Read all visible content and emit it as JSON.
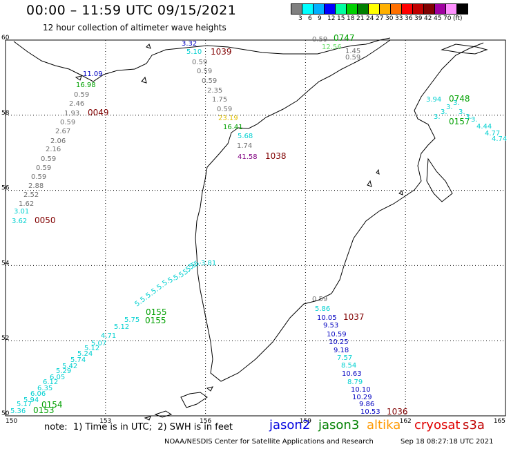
{
  "header": {
    "title": "00:00 – 11:59 UTC 09/15/2021",
    "subtitle": "12 hour collection of altimeter wave heights"
  },
  "color_scale": {
    "unit_label": "(ft)",
    "labels": [
      "3",
      "6",
      "9",
      "12",
      "15",
      "18",
      "21",
      "24",
      "27",
      "30",
      "33",
      "36",
      "39",
      "42",
      "45",
      "70"
    ],
    "colors": [
      "#808080",
      "#00ffff",
      "#00b0ff",
      "#0000ff",
      "#00ffa0",
      "#00d000",
      "#008000",
      "#ffff00",
      "#ffb000",
      "#ff7000",
      "#ff0000",
      "#c00000",
      "#800000",
      "#a000a0",
      "#ff90ff",
      "#000000"
    ]
  },
  "axes": {
    "lon_ticks": [
      "150",
      "153",
      "156",
      "159",
      "162",
      "165"
    ],
    "lat_ticks": [
      "60",
      "58",
      "56",
      "54",
      "52",
      "50"
    ]
  },
  "track_colors": {
    "grey": "#707070",
    "cyan": "#00d0d0",
    "blue": "#0000c0",
    "green": "#00a000",
    "lightgreen": "#66dd66",
    "yellow": "#e0c000",
    "purple": "#800080",
    "darkred": "#800000"
  },
  "observations": [
    {
      "v": "3.32",
      "c": "blue"
    },
    {
      "v": "5.10",
      "c": "cyan"
    },
    {
      "v": "1039",
      "c": "darkred",
      "t": 1
    },
    {
      "v": "0.59",
      "c": "grey"
    },
    {
      "v": "0.59",
      "c": "grey"
    },
    {
      "v": "0.59",
      "c": "grey"
    },
    {
      "v": "2.35",
      "c": "grey"
    },
    {
      "v": "1.75",
      "c": "grey"
    },
    {
      "v": "0.59",
      "c": "grey"
    },
    {
      "v": "23.19",
      "c": "yellow"
    },
    {
      "v": "16.41",
      "c": "green"
    },
    {
      "v": "5.68",
      "c": "cyan"
    },
    {
      "v": "1.74",
      "c": "grey"
    },
    {
      "v": "41.58",
      "c": "purple"
    },
    {
      "v": "1038",
      "c": "darkred",
      "t": 1
    },
    {
      "v": "11.09",
      "c": "blue"
    },
    {
      "v": "16.98",
      "c": "green"
    },
    {
      "v": "0.59",
      "c": "grey"
    },
    {
      "v": "2.46",
      "c": "grey"
    },
    {
      "v": "1.93",
      "c": "grey"
    },
    {
      "v": "0049",
      "c": "darkred",
      "t": 1
    },
    {
      "v": "0.59",
      "c": "grey"
    },
    {
      "v": "2.67",
      "c": "grey"
    },
    {
      "v": "2.06",
      "c": "grey"
    },
    {
      "v": "2.16",
      "c": "grey"
    },
    {
      "v": "0.59",
      "c": "grey"
    },
    {
      "v": "0.59",
      "c": "grey"
    },
    {
      "v": "0.59",
      "c": "grey"
    },
    {
      "v": "2.88",
      "c": "grey"
    },
    {
      "v": "2.52",
      "c": "grey"
    },
    {
      "v": "1.62",
      "c": "grey"
    },
    {
      "v": "3.01",
      "c": "cyan"
    },
    {
      "v": "3.62",
      "c": "cyan"
    },
    {
      "v": "0050",
      "c": "darkred",
      "t": 1
    },
    {
      "v": "0.59",
      "c": "grey"
    },
    {
      "v": "0747",
      "c": "green",
      "t": 1
    },
    {
      "v": "12.56",
      "c": "lightgreen"
    },
    {
      "v": "1.45",
      "c": "grey"
    },
    {
      "v": "0.59",
      "c": "grey"
    },
    {
      "v": "3.94",
      "c": "cyan"
    },
    {
      "v": "0748",
      "c": "green",
      "t": 1
    },
    {
      "v": "0157",
      "c": "green",
      "t": 1
    },
    {
      "v": "4.44",
      "c": "cyan"
    },
    {
      "v": "4.77",
      "c": "cyan"
    },
    {
      "v": "4.74",
      "c": "cyan"
    },
    {
      "v": "0.59",
      "c": "grey"
    },
    {
      "v": "5.86",
      "c": "cyan"
    },
    {
      "v": "10.05",
      "c": "blue"
    },
    {
      "v": "1037",
      "c": "darkred",
      "t": 1
    },
    {
      "v": "9.53",
      "c": "blue"
    },
    {
      "v": "10.59",
      "c": "blue"
    },
    {
      "v": "10.25",
      "c": "blue"
    },
    {
      "v": "9.18",
      "c": "blue"
    },
    {
      "v": "7.57",
      "c": "cyan"
    },
    {
      "v": "8.54",
      "c": "cyan"
    },
    {
      "v": "10.63",
      "c": "blue"
    },
    {
      "v": "8.79",
      "c": "cyan"
    },
    {
      "v": "10.10",
      "c": "blue"
    },
    {
      "v": "10.29",
      "c": "blue"
    },
    {
      "v": "9.86",
      "c": "blue"
    },
    {
      "v": "10.53",
      "c": "blue"
    },
    {
      "v": "1036",
      "c": "darkred",
      "t": 1
    },
    {
      "v": "0155",
      "c": "green",
      "t": 1
    },
    {
      "v": "0155",
      "c": "green",
      "t": 1
    },
    {
      "v": "0154",
      "c": "green",
      "t": 1
    },
    {
      "v": "0153",
      "c": "green",
      "t": 1
    },
    {
      "v": "5.36",
      "c": "cyan"
    },
    {
      "v": "5.17",
      "c": "cyan"
    },
    {
      "v": "5.94",
      "c": "cyan"
    },
    {
      "v": "6.06",
      "c": "cyan"
    },
    {
      "v": "6.35",
      "c": "cyan"
    },
    {
      "v": "6.12",
      "c": "cyan"
    },
    {
      "v": "6.05",
      "c": "cyan"
    },
    {
      "v": "5.29",
      "c": "cyan"
    },
    {
      "v": "5.42",
      "c": "cyan"
    },
    {
      "v": "5.74",
      "c": "cyan"
    },
    {
      "v": "5.24",
      "c": "cyan"
    },
    {
      "v": "5.12",
      "c": "cyan"
    },
    {
      "v": "5.07",
      "c": "cyan"
    },
    {
      "v": "4.71",
      "c": "cyan"
    },
    {
      "v": "5.12",
      "c": "cyan"
    },
    {
      "v": "5.75",
      "c": "cyan"
    },
    {
      "v": "3.81",
      "c": "cyan"
    }
  ],
  "footer": {
    "note": "note:  1) Time is in UTC;  2) SWH is in feet",
    "satellites": [
      {
        "name": "jason2",
        "color": "#0000e0"
      },
      {
        "name": "jason3",
        "color": "#008000"
      },
      {
        "name": "altika",
        "color": "#ff9900"
      },
      {
        "name": "cryosat",
        "color": "#e00000"
      },
      {
        "name": "s3a",
        "color": "#c00000"
      }
    ],
    "credit": "NOAA/NESDIS Center for Satellite Applications and Research",
    "generated": "Sep 18 08:27:18 UTC 2021"
  }
}
